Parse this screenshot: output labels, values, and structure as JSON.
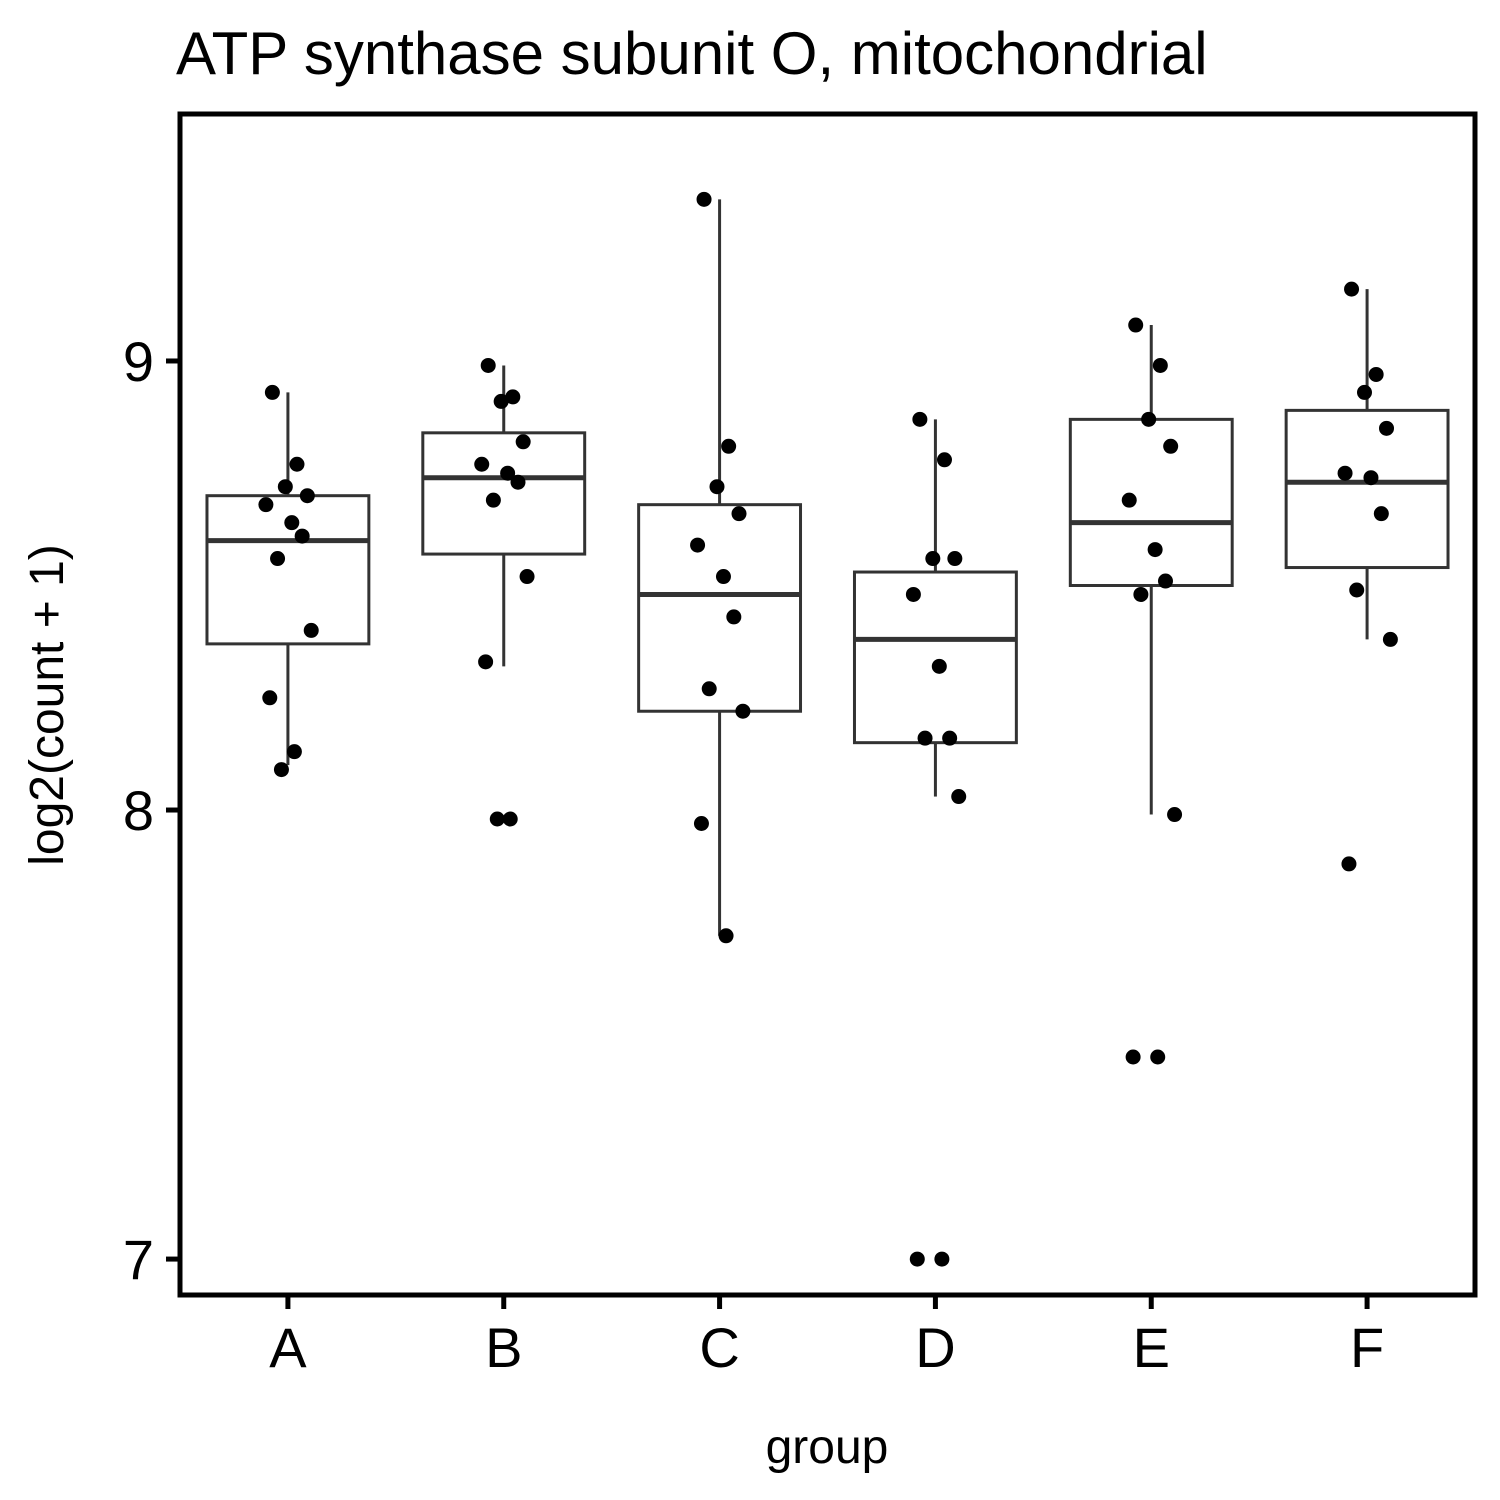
{
  "chart_data": {
    "type": "boxplot",
    "title": "ATP synthase subunit O, mitochondrial",
    "xlabel": "group",
    "ylabel": "log2(count + 1)",
    "ylim": [
      6.92,
      9.55
    ],
    "yticks": [
      7,
      8,
      9
    ],
    "grid": false,
    "legend": "none",
    "categories": [
      "A",
      "B",
      "C",
      "D",
      "E",
      "F"
    ],
    "boxes": [
      {
        "group": "A",
        "q1": 8.37,
        "median": 8.6,
        "q3": 8.7,
        "whisker_low": 8.1,
        "whisker_high": 8.93
      },
      {
        "group": "B",
        "q1": 8.57,
        "median": 8.74,
        "q3": 8.84,
        "whisker_low": 8.32,
        "whisker_high": 8.99
      },
      {
        "group": "C",
        "q1": 8.22,
        "median": 8.48,
        "q3": 8.68,
        "whisker_low": 7.72,
        "whisker_high": 9.36
      },
      {
        "group": "D",
        "q1": 8.15,
        "median": 8.38,
        "q3": 8.53,
        "whisker_low": 8.03,
        "whisker_high": 8.87
      },
      {
        "group": "E",
        "q1": 8.5,
        "median": 8.64,
        "q3": 8.87,
        "whisker_low": 7.99,
        "whisker_high": 9.08
      },
      {
        "group": "F",
        "q1": 8.54,
        "median": 8.73,
        "q3": 8.89,
        "whisker_low": 8.38,
        "whisker_high": 9.16
      }
    ],
    "points": [
      {
        "group": "A",
        "values": [
          8.93,
          8.77,
          8.72,
          8.7,
          8.68,
          8.64,
          8.61,
          8.56,
          8.4,
          8.25,
          8.13,
          8.09
        ]
      },
      {
        "group": "B",
        "values": [
          8.99,
          8.92,
          8.91,
          8.82,
          8.77,
          8.75,
          8.73,
          8.69,
          8.52,
          8.33,
          7.98,
          7.98
        ]
      },
      {
        "group": "C",
        "values": [
          9.36,
          8.81,
          8.72,
          8.66,
          8.59,
          8.52,
          8.43,
          8.27,
          8.22,
          7.97,
          7.72
        ]
      },
      {
        "group": "D",
        "values": [
          8.87,
          8.78,
          8.56,
          8.56,
          8.48,
          8.32,
          8.16,
          8.16,
          8.03,
          7.0,
          7.0
        ]
      },
      {
        "group": "E",
        "values": [
          9.08,
          8.99,
          8.87,
          8.81,
          8.69,
          8.58,
          8.51,
          8.48,
          7.99,
          7.45,
          7.45
        ]
      },
      {
        "group": "F",
        "values": [
          9.16,
          8.97,
          8.93,
          8.85,
          8.75,
          8.74,
          8.66,
          8.49,
          8.38,
          7.88
        ]
      }
    ]
  }
}
